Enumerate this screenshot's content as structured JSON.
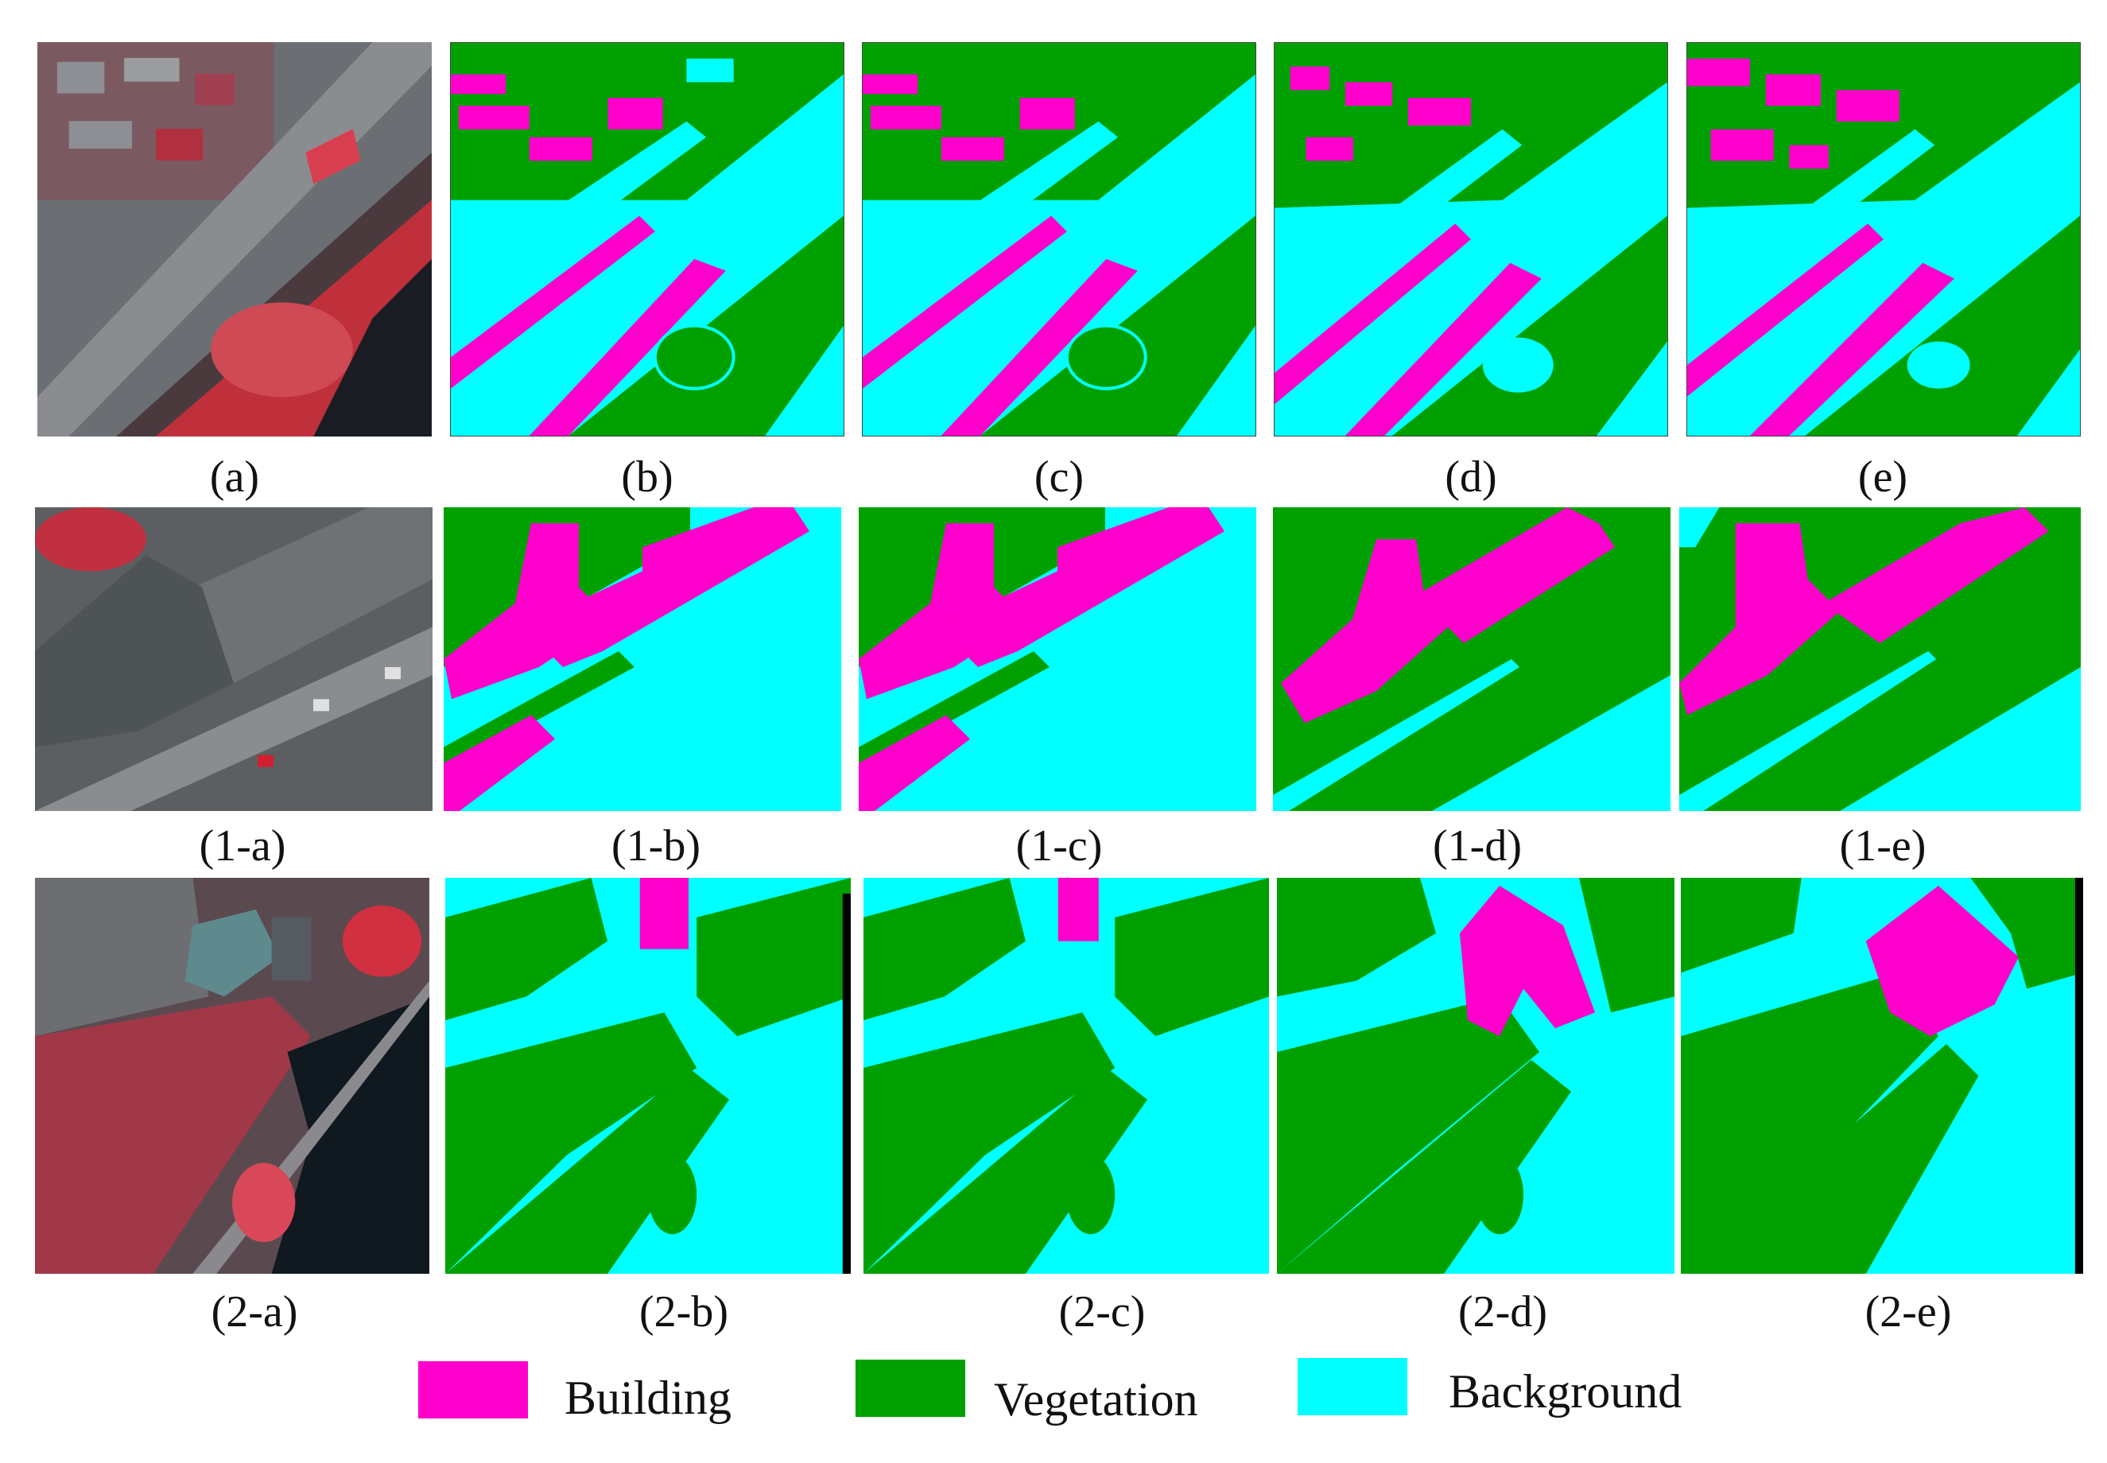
{
  "figure": {
    "rows": [
      {
        "captions": [
          "(a)",
          "(b)",
          "(c)",
          "(d)",
          "(e)"
        ]
      },
      {
        "captions": [
          "(1-a)",
          "(1-b)",
          "(1-c)",
          "(1-d)",
          "(1-e)"
        ]
      },
      {
        "captions": [
          "(2-a)",
          "(2-b)",
          "(2-c)",
          "(2-d)",
          "(2-e)"
        ]
      }
    ],
    "legend": [
      {
        "label": "Building",
        "color": "#ff00cc"
      },
      {
        "label": "Vegetation",
        "color": "#00a000"
      },
      {
        "label": "Background",
        "color": "#00ffff"
      }
    ]
  }
}
